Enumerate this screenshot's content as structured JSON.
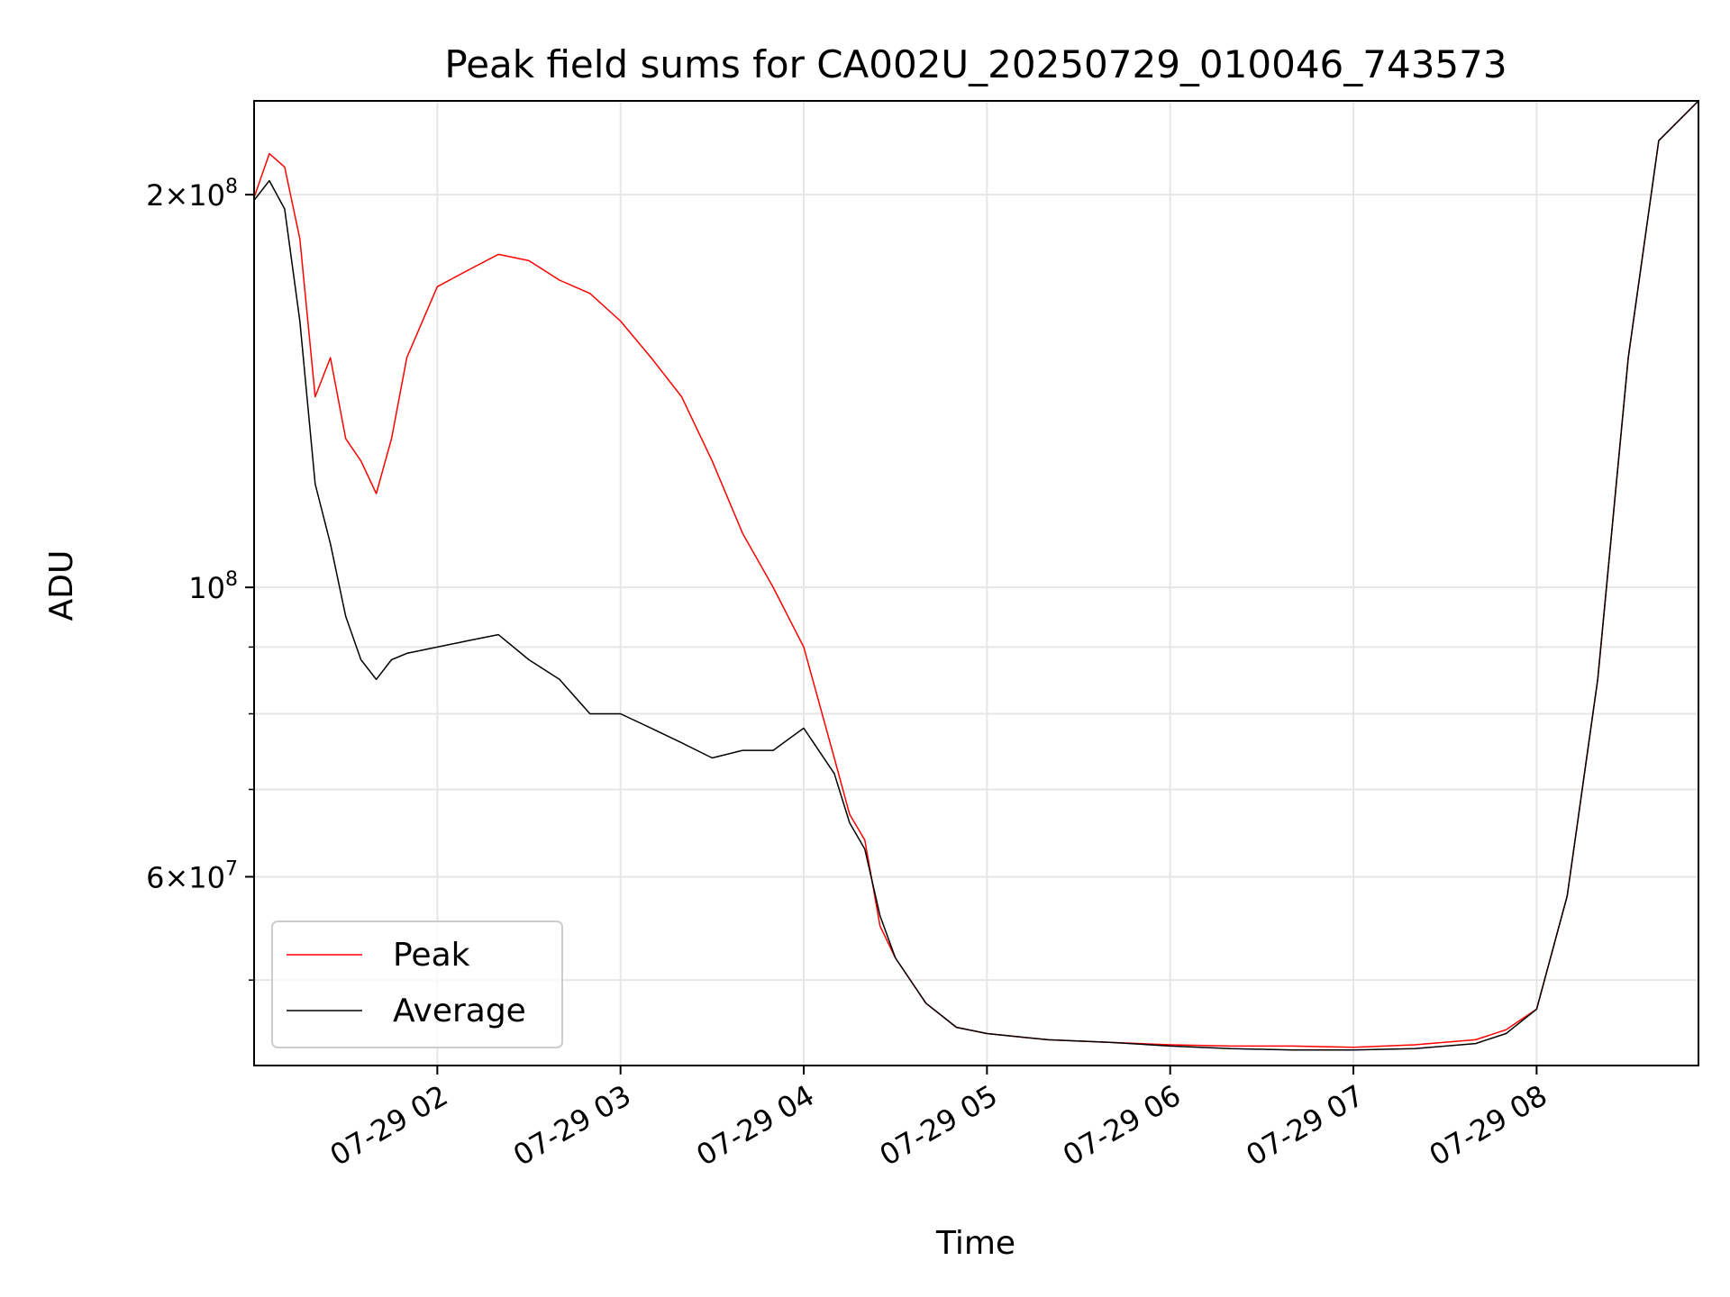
{
  "chart_data": {
    "type": "line",
    "title": "Peak field sums for CA002U_20250729_010046_743573",
    "xlabel": "Time",
    "ylabel": "ADU",
    "yscale": "log",
    "xlim": [
      "2025-07-29T01:00",
      "2025-07-29T08:53"
    ],
    "ylim": [
      43000000,
      236000000
    ],
    "x_ticks": [
      "07-29 02",
      "07-29 03",
      "07-29 04",
      "07-29 05",
      "07-29 06",
      "07-29 07",
      "07-29 08"
    ],
    "x_tick_values": [
      "2025-07-29T02:00",
      "2025-07-29T03:00",
      "2025-07-29T04:00",
      "2025-07-29T05:00",
      "2025-07-29T06:00",
      "2025-07-29T07:00",
      "2025-07-29T08:00"
    ],
    "y_ticks": [
      {
        "value": 200000000,
        "base": "2×10",
        "exp": "8"
      },
      {
        "value": 100000000,
        "base": "10",
        "exp": "8"
      },
      {
        "value": 60000000,
        "base": "6×10",
        "exp": "7"
      }
    ],
    "y_minor_ticks": [
      50000000,
      70000000,
      80000000,
      90000000
    ],
    "grid": true,
    "legend_position": "lower-left",
    "series": [
      {
        "name": "Peak",
        "color": "#ff0000",
        "x": [
          "2025-07-29T01:00",
          "2025-07-29T01:05",
          "2025-07-29T01:10",
          "2025-07-29T01:15",
          "2025-07-29T01:20",
          "2025-07-29T01:25",
          "2025-07-29T01:30",
          "2025-07-29T01:35",
          "2025-07-29T01:40",
          "2025-07-29T01:45",
          "2025-07-29T01:50",
          "2025-07-29T02:00",
          "2025-07-29T02:10",
          "2025-07-29T02:20",
          "2025-07-29T02:30",
          "2025-07-29T02:40",
          "2025-07-29T02:50",
          "2025-07-29T03:00",
          "2025-07-29T03:10",
          "2025-07-29T03:20",
          "2025-07-29T03:30",
          "2025-07-29T03:40",
          "2025-07-29T03:50",
          "2025-07-29T04:00",
          "2025-07-29T04:10",
          "2025-07-29T04:15",
          "2025-07-29T04:20",
          "2025-07-29T04:25",
          "2025-07-29T04:30",
          "2025-07-29T04:40",
          "2025-07-29T04:50",
          "2025-07-29T05:00",
          "2025-07-29T05:20",
          "2025-07-29T05:40",
          "2025-07-29T06:00",
          "2025-07-29T06:20",
          "2025-07-29T06:40",
          "2025-07-29T07:00",
          "2025-07-29T07:20",
          "2025-07-29T07:40",
          "2025-07-29T07:50",
          "2025-07-29T08:00",
          "2025-07-29T08:10",
          "2025-07-29T08:20",
          "2025-07-29T08:30",
          "2025-07-29T08:40",
          "2025-07-29T08:53"
        ],
        "y": [
          199000000,
          215000000,
          210000000,
          185000000,
          140000000,
          150000000,
          130000000,
          125000000,
          118000000,
          130000000,
          150000000,
          170000000,
          175000000,
          180000000,
          178000000,
          172000000,
          168000000,
          160000000,
          150000000,
          140000000,
          125000000,
          110000000,
          100000000,
          90000000,
          74000000,
          67000000,
          64000000,
          55000000,
          52000000,
          48000000,
          46000000,
          45500000,
          45000000,
          44800000,
          44600000,
          44500000,
          44500000,
          44400000,
          44600000,
          45000000,
          45800000,
          47500000,
          58000000,
          85000000,
          150000000,
          220000000,
          236000000
        ]
      },
      {
        "name": "Average",
        "color": "#000000",
        "x": [
          "2025-07-29T01:00",
          "2025-07-29T01:05",
          "2025-07-29T01:10",
          "2025-07-29T01:15",
          "2025-07-29T01:20",
          "2025-07-29T01:25",
          "2025-07-29T01:30",
          "2025-07-29T01:35",
          "2025-07-29T01:40",
          "2025-07-29T01:45",
          "2025-07-29T01:50",
          "2025-07-29T02:00",
          "2025-07-29T02:10",
          "2025-07-29T02:20",
          "2025-07-29T02:30",
          "2025-07-29T02:40",
          "2025-07-29T02:50",
          "2025-07-29T03:00",
          "2025-07-29T03:10",
          "2025-07-29T03:20",
          "2025-07-29T03:30",
          "2025-07-29T03:40",
          "2025-07-29T03:50",
          "2025-07-29T04:00",
          "2025-07-29T04:10",
          "2025-07-29T04:15",
          "2025-07-29T04:20",
          "2025-07-29T04:25",
          "2025-07-29T04:30",
          "2025-07-29T04:40",
          "2025-07-29T04:50",
          "2025-07-29T05:00",
          "2025-07-29T05:20",
          "2025-07-29T05:40",
          "2025-07-29T06:00",
          "2025-07-29T06:20",
          "2025-07-29T06:40",
          "2025-07-29T07:00",
          "2025-07-29T07:20",
          "2025-07-29T07:40",
          "2025-07-29T07:50",
          "2025-07-29T08:00",
          "2025-07-29T08:10",
          "2025-07-29T08:20",
          "2025-07-29T08:30",
          "2025-07-29T08:40",
          "2025-07-29T08:53"
        ],
        "y": [
          198000000,
          205000000,
          195000000,
          160000000,
          120000000,
          108000000,
          95000000,
          88000000,
          85000000,
          88000000,
          89000000,
          90000000,
          91000000,
          92000000,
          88000000,
          85000000,
          80000000,
          80000000,
          78000000,
          76000000,
          74000000,
          75000000,
          75000000,
          78000000,
          72000000,
          66000000,
          63000000,
          56000000,
          52000000,
          48000000,
          46000000,
          45500000,
          45000000,
          44800000,
          44500000,
          44300000,
          44200000,
          44200000,
          44300000,
          44700000,
          45500000,
          47500000,
          58000000,
          85000000,
          150000000,
          220000000,
          236000000
        ]
      }
    ]
  }
}
